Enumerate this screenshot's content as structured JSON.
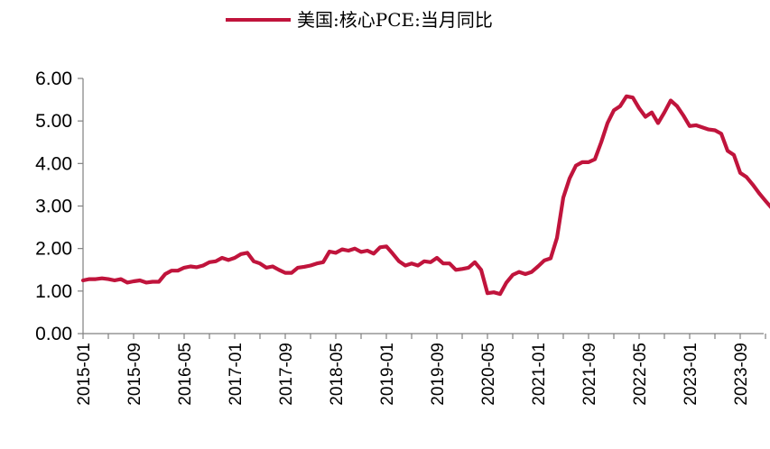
{
  "chart_data": {
    "type": "line",
    "title": "",
    "xlabel": "",
    "ylabel": "",
    "ylim": [
      0,
      6
    ],
    "yticks": [
      "0.00",
      "1.00",
      "2.00",
      "3.00",
      "4.00",
      "5.00",
      "6.00"
    ],
    "xticks": [
      "2015-01",
      "2015-09",
      "2016-05",
      "2017-01",
      "2017-09",
      "2018-05",
      "2019-01",
      "2019-09",
      "2020-05",
      "2021-01",
      "2021-09",
      "2022-05",
      "2023-01",
      "2023-09"
    ],
    "grid": false,
    "legend_position": "top-center",
    "series": [
      {
        "name": "美国:核心PCE:当月同比",
        "color": "#c0143c",
        "start": "2015-01",
        "values": [
          1.25,
          1.28,
          1.28,
          1.3,
          1.28,
          1.25,
          1.28,
          1.2,
          1.23,
          1.25,
          1.2,
          1.22,
          1.22,
          1.4,
          1.48,
          1.48,
          1.55,
          1.58,
          1.56,
          1.6,
          1.68,
          1.7,
          1.78,
          1.73,
          1.78,
          1.87,
          1.9,
          1.7,
          1.65,
          1.55,
          1.58,
          1.5,
          1.43,
          1.43,
          1.55,
          1.57,
          1.6,
          1.65,
          1.68,
          1.93,
          1.9,
          1.98,
          1.95,
          2.0,
          1.92,
          1.95,
          1.88,
          2.03,
          2.05,
          1.88,
          1.7,
          1.6,
          1.65,
          1.6,
          1.7,
          1.68,
          1.78,
          1.65,
          1.65,
          1.5,
          1.52,
          1.55,
          1.68,
          1.5,
          0.95,
          0.97,
          0.93,
          1.2,
          1.38,
          1.45,
          1.4,
          1.45,
          1.58,
          1.72,
          1.77,
          2.25,
          3.2,
          3.65,
          3.95,
          4.03,
          4.03,
          4.1,
          4.5,
          4.95,
          5.25,
          5.35,
          5.58,
          5.55,
          5.3,
          5.1,
          5.2,
          4.95,
          5.2,
          5.48,
          5.35,
          5.13,
          4.88,
          4.9,
          4.85,
          4.8,
          4.78,
          4.7,
          4.3,
          4.2,
          3.78,
          3.68,
          3.5,
          3.3,
          3.12,
          2.95,
          2.88
        ]
      }
    ]
  }
}
